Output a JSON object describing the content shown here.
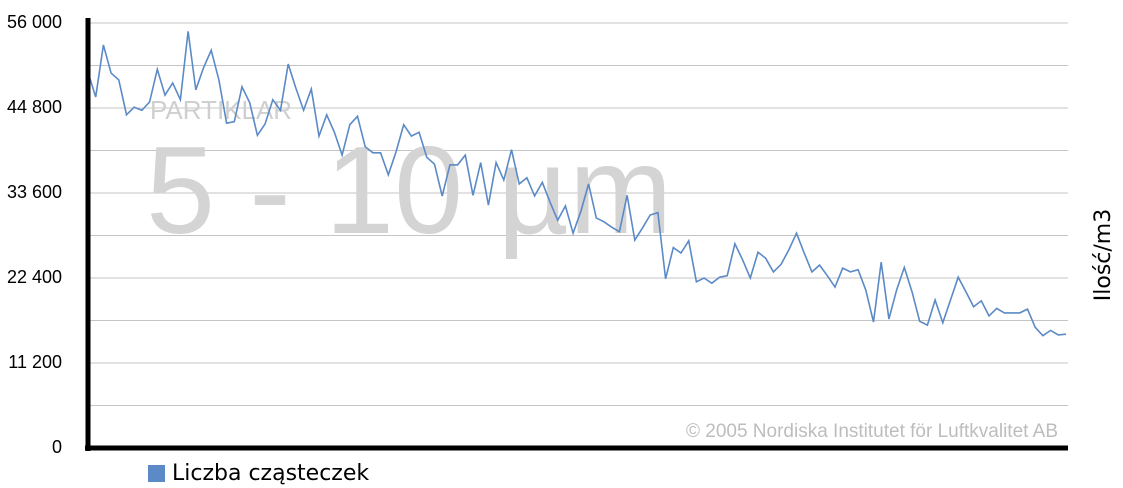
{
  "chart_data": {
    "type": "line",
    "watermark_label": "PARTIKLAR",
    "watermark_title": "5 - 10 µm",
    "copyright": "© 2005 Nordiska Institutet för Luftkvalitet AB",
    "y_axis_label": "Ilość/m3",
    "series": [
      {
        "name": "Liczba cząsteczek",
        "color": "#5b8ac6",
        "values": [
          49500,
          46250,
          53100,
          49400,
          48500,
          43900,
          44900,
          44500,
          45600,
          49900,
          46500,
          48100,
          45900,
          54900,
          47200,
          50100,
          52400,
          48500,
          42800,
          43000,
          47600,
          45500,
          41200,
          42700,
          45900,
          44500,
          50600,
          47400,
          44500,
          47300,
          41100,
          43900,
          41600,
          38600,
          42600,
          43700,
          39700,
          38900,
          38900,
          36000,
          39000,
          42600,
          41100,
          41600,
          38300,
          37400,
          33200,
          37300,
          37300,
          38600,
          33300,
          37600,
          32000,
          37600,
          35300,
          39300,
          34800,
          35600,
          33200,
          35000,
          32400,
          30000,
          31900,
          28300,
          31200,
          34800,
          30300,
          29800,
          29100,
          28500,
          33300,
          27400,
          29000,
          30700,
          31000,
          22300,
          26400,
          25700,
          27300,
          21900,
          22400,
          21700,
          22500,
          22700,
          26900,
          24800,
          22400,
          25800,
          25000,
          23200,
          24200,
          26100,
          28300,
          25700,
          23200,
          24100,
          22700,
          21200,
          23700,
          23200,
          23500,
          20800,
          16600,
          24500,
          17000,
          20800,
          23800,
          20600,
          16700,
          16200,
          19500,
          16500,
          19500,
          22500,
          20600,
          18600,
          19400,
          17400,
          18400,
          17800,
          17800,
          17800,
          18300,
          15900,
          14800,
          15500,
          14900,
          15000
        ]
      }
    ],
    "ylim": [
      0,
      56000
    ],
    "yticks": [
      0,
      {
        "value": 11200,
        "label": "11 200"
      },
      {
        "value": 22400,
        "label": "22 400"
      },
      {
        "value": 33600,
        "label": "33 600"
      },
      {
        "value": 44800,
        "label": "44 800"
      },
      {
        "value": 56000,
        "label": "56 000"
      }
    ],
    "minor_yticks": [
      5600,
      16800,
      28000,
      39200,
      50400
    ],
    "grid": true
  }
}
